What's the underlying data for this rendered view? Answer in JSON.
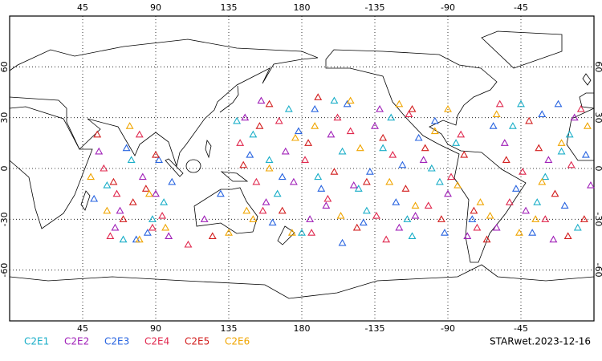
{
  "chart_data": {
    "type": "scatter",
    "annotation": "STARwet.2023-12-16",
    "xlim": [
      0,
      360
    ],
    "ylim": [
      -90,
      90
    ],
    "xticks": [
      45,
      90,
      135,
      180,
      {
        "value": 225,
        "label": "-135"
      },
      {
        "value": 270,
        "label": "-90"
      },
      {
        "value": 315,
        "label": "-45"
      }
    ],
    "yticks": [
      60,
      30,
      0,
      -30,
      -60
    ],
    "grid": true,
    "series": [
      {
        "name": "C2E1",
        "color": "#19aec8",
        "x": [
          60,
          75,
          88,
          150,
          165,
          172,
          190,
          205,
          220,
          235,
          248,
          260,
          275,
          310,
          325,
          340,
          350,
          70,
          95,
          140,
          180,
          200,
          215,
          230,
          245,
          315,
          330,
          345,
          160,
          265
        ],
        "values": [
          -10,
          5,
          -30,
          20,
          -15,
          35,
          -5,
          10,
          -25,
          30,
          -40,
          0,
          15,
          25,
          -20,
          10,
          -35,
          -42,
          -20,
          28,
          -38,
          40,
          -12,
          12,
          -30,
          38,
          -5,
          20,
          5,
          -8
        ]
      },
      {
        "name": "C2E2",
        "color": "#a020b8",
        "x": [
          55,
          68,
          82,
          98,
          145,
          158,
          170,
          185,
          198,
          212,
          228,
          240,
          255,
          270,
          282,
          305,
          318,
          332,
          348,
          358,
          65,
          90,
          155,
          175,
          195,
          225,
          250,
          300,
          335,
          120
        ],
        "values": [
          10,
          -25,
          -5,
          -40,
          30,
          -20,
          10,
          -30,
          20,
          -10,
          35,
          -35,
          5,
          -15,
          -40,
          15,
          -25,
          5,
          30,
          -10,
          -35,
          -15,
          40,
          -8,
          -22,
          25,
          -28,
          -35,
          -42,
          -30
        ]
      },
      {
        "name": "C2E3",
        "color": "#2864e0",
        "x": [
          52,
          72,
          85,
          100,
          148,
          162,
          178,
          192,
          208,
          222,
          238,
          252,
          268,
          285,
          298,
          312,
          328,
          342,
          355,
          78,
          92,
          168,
          188,
          218,
          242,
          262,
          322,
          338,
          130,
          205
        ],
        "values": [
          -18,
          12,
          -38,
          -8,
          8,
          -32,
          22,
          -12,
          38,
          -2,
          -20,
          18,
          -38,
          -30,
          25,
          -12,
          32,
          -22,
          8,
          -42,
          5,
          -5,
          35,
          -32,
          2,
          28,
          -38,
          38,
          -15,
          -44
        ]
      },
      {
        "name": "C2E4",
        "color": "#e0284e",
        "x": [
          58,
          66,
          80,
          94,
          142,
          152,
          166,
          182,
          196,
          210,
          226,
          236,
          246,
          258,
          272,
          288,
          302,
          316,
          330,
          346,
          62,
          88,
          156,
          186,
          202,
          232,
          278,
          308,
          352,
          110
        ],
        "values": [
          0,
          -15,
          20,
          -28,
          15,
          -8,
          28,
          5,
          -18,
          22,
          -28,
          8,
          32,
          -22,
          -5,
          -35,
          38,
          -2,
          -30,
          2,
          -40,
          -35,
          -25,
          -38,
          30,
          -42,
          20,
          -20,
          35,
          -45
        ]
      },
      {
        "name": "C2E5",
        "color": "#d21e1e",
        "x": [
          54,
          64,
          76,
          90,
          144,
          154,
          168,
          184,
          200,
          214,
          230,
          244,
          256,
          266,
          280,
          294,
          306,
          320,
          336,
          354,
          70,
          84,
          160,
          190,
          220,
          248,
          286,
          326,
          344,
          125
        ],
        "values": [
          20,
          -8,
          -20,
          8,
          2,
          25,
          -25,
          15,
          -2,
          -35,
          18,
          -12,
          12,
          -30,
          8,
          -42,
          5,
          28,
          -15,
          -30,
          -30,
          -12,
          38,
          42,
          -8,
          35,
          -25,
          12,
          -40,
          -40
        ]
      },
      {
        "name": "C2E6",
        "color": "#f0a500",
        "x": [
          50,
          74,
          86,
          96,
          146,
          160,
          174,
          188,
          204,
          216,
          234,
          250,
          262,
          276,
          290,
          300,
          314,
          328,
          340,
          356,
          60,
          80,
          150,
          176,
          210,
          240,
          270,
          296,
          324,
          135
        ],
        "values": [
          -5,
          25,
          -15,
          -35,
          -25,
          0,
          -38,
          25,
          -28,
          12,
          -8,
          -22,
          22,
          -10,
          -20,
          32,
          -38,
          -8,
          15,
          25,
          -25,
          -42,
          -30,
          18,
          40,
          38,
          35,
          -28,
          -30,
          -38
        ]
      }
    ]
  }
}
